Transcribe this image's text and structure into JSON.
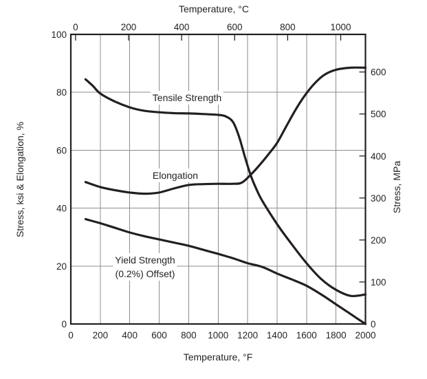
{
  "figure": {
    "background": "#ffffff",
    "line_color": "#231f20",
    "grid_color": "#8c8c8c",
    "text_color": "#231f20"
  },
  "chart_data": {
    "type": "line",
    "grid": true,
    "legend_position": "inline-labels",
    "x_top": {
      "label": "Temperature, °C",
      "ticks": [
        0,
        200,
        400,
        600,
        800,
        1000
      ]
    },
    "x_bottom": {
      "label": "Temperature, °F",
      "min": 0,
      "max": 2000,
      "ticks": [
        0,
        200,
        400,
        600,
        800,
        1000,
        1200,
        1400,
        1600,
        1800,
        2000
      ]
    },
    "y_left": {
      "label": "Stress, ksi & Elongation, %",
      "min": 0,
      "max": 100,
      "ticks": [
        0,
        20,
        40,
        60,
        80,
        100
      ]
    },
    "y_right": {
      "label": "Stress, MPa",
      "ticks": [
        0,
        100,
        200,
        300,
        400,
        500,
        600
      ]
    },
    "series": [
      {
        "name": "Tensile Strength",
        "label_lines": [
          "Tensile Strength"
        ],
        "units": "ksi vs °F",
        "points": [
          [
            100,
            84.5
          ],
          [
            150,
            82.2
          ],
          [
            200,
            79.6
          ],
          [
            300,
            76.8
          ],
          [
            400,
            74.8
          ],
          [
            500,
            73.6
          ],
          [
            600,
            73.1
          ],
          [
            700,
            72.8
          ],
          [
            800,
            72.7
          ],
          [
            900,
            72.5
          ],
          [
            1000,
            72.2
          ],
          [
            1050,
            71.7
          ],
          [
            1100,
            69.8
          ],
          [
            1140,
            65.0
          ],
          [
            1180,
            58.0
          ],
          [
            1220,
            51.5
          ],
          [
            1260,
            46.5
          ],
          [
            1300,
            42.5
          ],
          [
            1400,
            34.5
          ],
          [
            1500,
            27.5
          ],
          [
            1600,
            21.0
          ],
          [
            1700,
            15.5
          ],
          [
            1800,
            11.8
          ],
          [
            1900,
            9.7
          ],
          [
            2000,
            10.2
          ]
        ]
      },
      {
        "name": "Elongation",
        "label_lines": [
          "Elongation"
        ],
        "units": "% vs °F",
        "points": [
          [
            100,
            49.0
          ],
          [
            200,
            47.3
          ],
          [
            300,
            46.2
          ],
          [
            400,
            45.4
          ],
          [
            500,
            45.0
          ],
          [
            600,
            45.4
          ],
          [
            700,
            46.8
          ],
          [
            800,
            48.0
          ],
          [
            900,
            48.3
          ],
          [
            1000,
            48.4
          ],
          [
            1100,
            48.4
          ],
          [
            1160,
            48.8
          ],
          [
            1220,
            51.5
          ],
          [
            1280,
            54.8
          ],
          [
            1340,
            58.5
          ],
          [
            1400,
            62.5
          ],
          [
            1460,
            68.0
          ],
          [
            1520,
            73.5
          ],
          [
            1580,
            78.3
          ],
          [
            1650,
            82.8
          ],
          [
            1720,
            86.0
          ],
          [
            1800,
            87.8
          ],
          [
            1900,
            88.5
          ],
          [
            2000,
            88.5
          ]
        ]
      },
      {
        "name": "Yield Strength (0.2%) Offset)",
        "label_lines": [
          "Yield Strength",
          "(0.2%) Offset)"
        ],
        "units": "ksi vs °F",
        "points": [
          [
            100,
            36.2
          ],
          [
            200,
            34.8
          ],
          [
            300,
            33.2
          ],
          [
            400,
            31.6
          ],
          [
            500,
            30.3
          ],
          [
            600,
            29.2
          ],
          [
            700,
            28.1
          ],
          [
            800,
            27.0
          ],
          [
            900,
            25.6
          ],
          [
            1000,
            24.2
          ],
          [
            1100,
            22.7
          ],
          [
            1200,
            21.0
          ],
          [
            1300,
            19.7
          ],
          [
            1400,
            17.4
          ],
          [
            1500,
            15.4
          ],
          [
            1600,
            13.2
          ],
          [
            1700,
            10.2
          ],
          [
            1800,
            6.8
          ],
          [
            1900,
            3.4
          ],
          [
            2000,
            0
          ]
        ]
      }
    ]
  }
}
